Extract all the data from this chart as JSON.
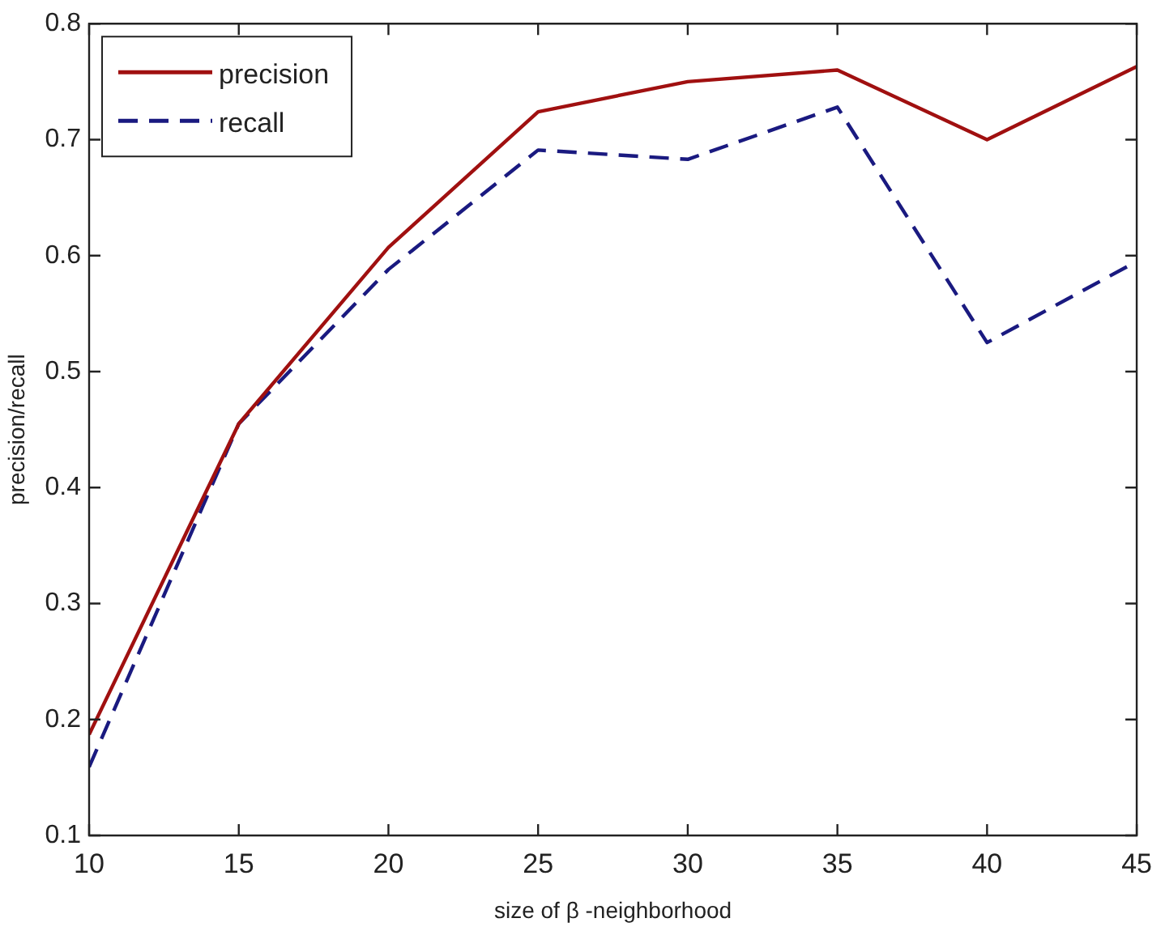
{
  "chart_data": {
    "type": "line",
    "xlabel": "size of β -neighborhood",
    "ylabel": "precision/recall",
    "x": [
      10,
      15,
      20,
      25,
      30,
      35,
      40,
      45
    ],
    "series": [
      {
        "name": "precision",
        "color": "#a01010",
        "line_style": "solid",
        "values": [
          0.187,
          0.455,
          0.607,
          0.724,
          0.75,
          0.76,
          0.7,
          0.763
        ]
      },
      {
        "name": "recall",
        "color": "#1a1a80",
        "line_style": "dashed",
        "values": [
          0.159,
          0.455,
          0.588,
          0.691,
          0.683,
          0.728,
          0.525,
          0.595
        ]
      }
    ],
    "xlim": [
      10,
      45
    ],
    "xticks": [
      10,
      15,
      20,
      25,
      30,
      35,
      40,
      45
    ],
    "ylim": [
      0.1,
      0.8
    ],
    "yticks": [
      0.1,
      0.2,
      0.3,
      0.4,
      0.5,
      0.6,
      0.7,
      0.8
    ],
    "grid": false,
    "legend": "top left",
    "marker": "none"
  }
}
